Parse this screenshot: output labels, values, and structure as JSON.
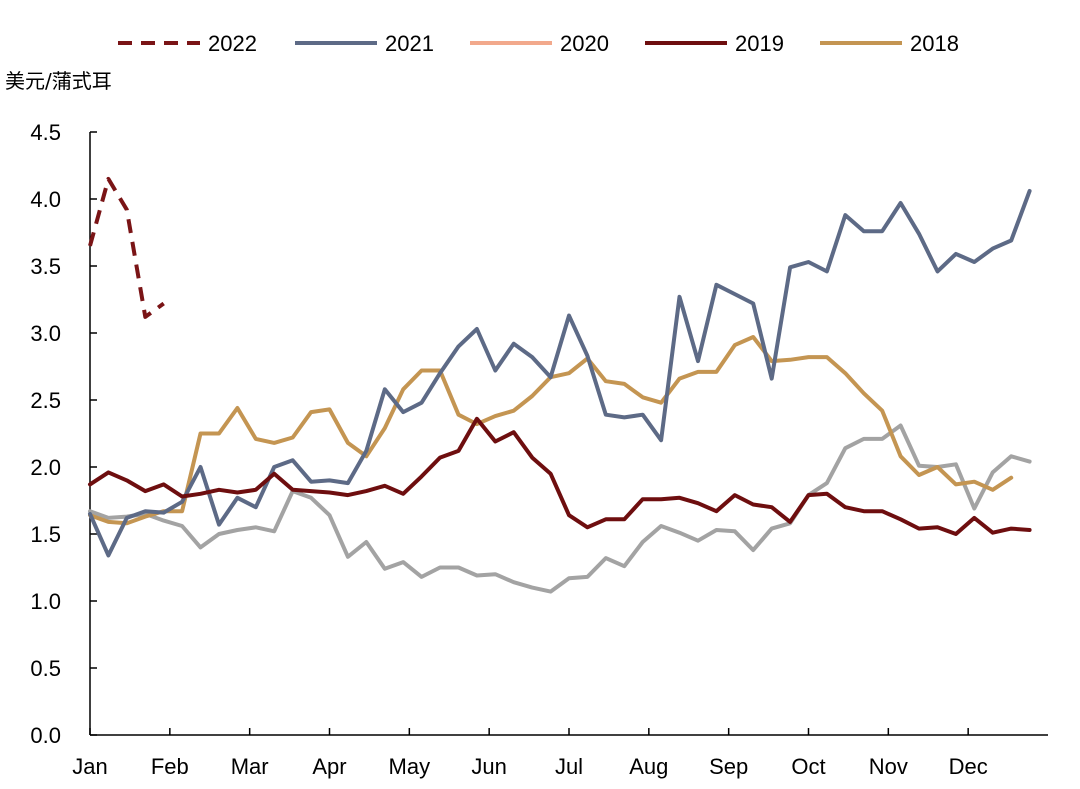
{
  "chart_data": {
    "type": "line",
    "ylabel": "美元/蒲式耳",
    "ylim": [
      0,
      4.5
    ],
    "yticks": [
      "0.0",
      "0.5",
      "1.0",
      "1.5",
      "2.0",
      "2.5",
      "3.0",
      "3.5",
      "4.0",
      "4.5"
    ],
    "xlim": [
      0,
      52
    ],
    "months": [
      "Jan",
      "Feb",
      "Mar",
      "Apr",
      "May",
      "Jun",
      "Jul",
      "Aug",
      "Sep",
      "Oct",
      "Nov",
      "Dec"
    ],
    "legend": [
      "2022",
      "2021",
      "2020",
      "2019",
      "2018"
    ],
    "series": [
      {
        "name": "2022",
        "color": "#7a1416",
        "dashed": true,
        "values": [
          3.65,
          4.15,
          3.92,
          3.12,
          3.22
        ]
      },
      {
        "name": "2021",
        "color": "#5d6a86",
        "dashed": false,
        "values": [
          1.65,
          1.34,
          1.62,
          1.67,
          1.66,
          1.74,
          2.0,
          1.57,
          1.77,
          1.7,
          2.0,
          2.05,
          1.89,
          1.9,
          1.88,
          2.12,
          2.58,
          2.41,
          2.48,
          2.7,
          2.9,
          3.03,
          2.72,
          2.92,
          2.82,
          2.67,
          3.13,
          2.83,
          2.39,
          2.37,
          2.39,
          2.2,
          3.27,
          2.79,
          3.36,
          3.29,
          3.22,
          2.66,
          3.49,
          3.53,
          3.46,
          3.88,
          3.76,
          3.76,
          3.97,
          3.74,
          3.46,
          3.59,
          3.53,
          3.63,
          3.69,
          4.06
        ]
      },
      {
        "name": "2020",
        "color": "#a3a3a3",
        "dashed": false,
        "values": [
          1.67,
          1.62,
          1.63,
          1.65,
          1.6,
          1.56,
          1.4,
          1.5,
          1.53,
          1.55,
          1.52,
          1.82,
          1.77,
          1.64,
          1.33,
          1.44,
          1.24,
          1.29,
          1.18,
          1.25,
          1.25,
          1.19,
          1.2,
          1.14,
          1.1,
          1.07,
          1.17,
          1.18,
          1.32,
          1.26,
          1.44,
          1.56,
          1.51,
          1.45,
          1.53,
          1.52,
          1.38,
          1.54,
          1.58,
          1.79,
          1.88,
          2.14,
          2.21,
          2.21,
          2.31,
          2.01,
          2.0,
          2.02,
          1.69,
          1.96,
          2.08,
          2.04
        ]
      },
      {
        "name": "2019",
        "color": "#6e0e0f",
        "dashed": false,
        "values": [
          1.87,
          1.96,
          1.9,
          1.82,
          1.87,
          1.78,
          1.8,
          1.83,
          1.81,
          1.83,
          1.95,
          1.83,
          1.82,
          1.81,
          1.79,
          1.82,
          1.86,
          1.8,
          1.93,
          2.07,
          2.12,
          2.36,
          2.19,
          2.26,
          2.07,
          1.95,
          1.64,
          1.55,
          1.61,
          1.61,
          1.76,
          1.76,
          1.77,
          1.73,
          1.67,
          1.79,
          1.72,
          1.7,
          1.59,
          1.79,
          1.8,
          1.7,
          1.67,
          1.67,
          1.61,
          1.54,
          1.55,
          1.5,
          1.62,
          1.51,
          1.54,
          1.53
        ]
      },
      {
        "name": "2018",
        "color": "#c49552",
        "dashed": false,
        "values": [
          1.64,
          1.59,
          1.58,
          1.63,
          1.67,
          1.67,
          2.25,
          2.25,
          2.44,
          2.21,
          2.18,
          2.22,
          2.41,
          2.43,
          2.18,
          2.08,
          2.29,
          2.58,
          2.72,
          2.72,
          2.39,
          2.32,
          2.38,
          2.42,
          2.53,
          2.67,
          2.7,
          2.81,
          2.64,
          2.62,
          2.52,
          2.48,
          2.66,
          2.71,
          2.71,
          2.91,
          2.97,
          2.79,
          2.8,
          2.82,
          2.82,
          2.7,
          2.55,
          2.42,
          2.08,
          1.94,
          2.0,
          1.87,
          1.89,
          1.83,
          1.92
        ]
      }
    ]
  }
}
